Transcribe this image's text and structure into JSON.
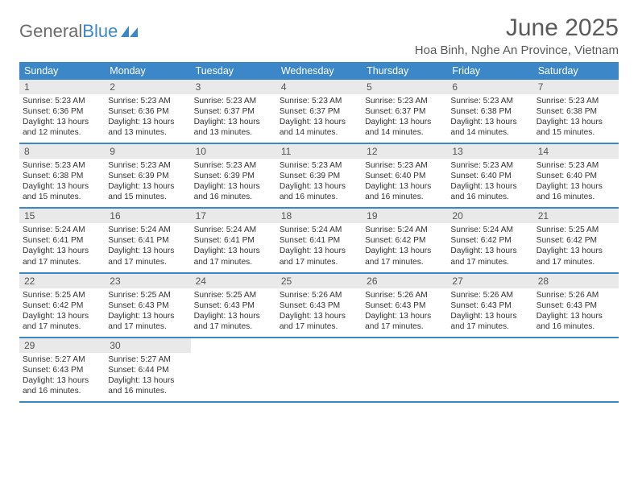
{
  "branding": {
    "logo_word1": "General",
    "logo_word2": "Blue",
    "logo_color_gray": "#6b6b6b",
    "logo_color_blue": "#3b87c8"
  },
  "header": {
    "month_title": "June 2025",
    "location": "Hoa Binh, Nghe An Province, Vietnam"
  },
  "colors": {
    "header_bar_bg": "#3b87c8",
    "header_bar_text": "#ffffff",
    "daynum_bg": "#e9e9e9",
    "text": "#333333",
    "row_border": "#3b87c8"
  },
  "typography": {
    "title_fontsize": 30,
    "location_fontsize": 15,
    "dow_fontsize": 12.5,
    "daynum_fontsize": 12,
    "body_fontsize": 10.2
  },
  "calendar": {
    "type": "table",
    "days_of_week": [
      "Sunday",
      "Monday",
      "Tuesday",
      "Wednesday",
      "Thursday",
      "Friday",
      "Saturday"
    ],
    "first_weekday_index": 0,
    "days": [
      {
        "n": 1,
        "sunrise": "5:23 AM",
        "sunset": "6:36 PM",
        "dl_h": 13,
        "dl_m": 12
      },
      {
        "n": 2,
        "sunrise": "5:23 AM",
        "sunset": "6:36 PM",
        "dl_h": 13,
        "dl_m": 13
      },
      {
        "n": 3,
        "sunrise": "5:23 AM",
        "sunset": "6:37 PM",
        "dl_h": 13,
        "dl_m": 13
      },
      {
        "n": 4,
        "sunrise": "5:23 AM",
        "sunset": "6:37 PM",
        "dl_h": 13,
        "dl_m": 14
      },
      {
        "n": 5,
        "sunrise": "5:23 AM",
        "sunset": "6:37 PM",
        "dl_h": 13,
        "dl_m": 14
      },
      {
        "n": 6,
        "sunrise": "5:23 AM",
        "sunset": "6:38 PM",
        "dl_h": 13,
        "dl_m": 14
      },
      {
        "n": 7,
        "sunrise": "5:23 AM",
        "sunset": "6:38 PM",
        "dl_h": 13,
        "dl_m": 15
      },
      {
        "n": 8,
        "sunrise": "5:23 AM",
        "sunset": "6:38 PM",
        "dl_h": 13,
        "dl_m": 15
      },
      {
        "n": 9,
        "sunrise": "5:23 AM",
        "sunset": "6:39 PM",
        "dl_h": 13,
        "dl_m": 15
      },
      {
        "n": 10,
        "sunrise": "5:23 AM",
        "sunset": "6:39 PM",
        "dl_h": 13,
        "dl_m": 16
      },
      {
        "n": 11,
        "sunrise": "5:23 AM",
        "sunset": "6:39 PM",
        "dl_h": 13,
        "dl_m": 16
      },
      {
        "n": 12,
        "sunrise": "5:23 AM",
        "sunset": "6:40 PM",
        "dl_h": 13,
        "dl_m": 16
      },
      {
        "n": 13,
        "sunrise": "5:23 AM",
        "sunset": "6:40 PM",
        "dl_h": 13,
        "dl_m": 16
      },
      {
        "n": 14,
        "sunrise": "5:23 AM",
        "sunset": "6:40 PM",
        "dl_h": 13,
        "dl_m": 16
      },
      {
        "n": 15,
        "sunrise": "5:24 AM",
        "sunset": "6:41 PM",
        "dl_h": 13,
        "dl_m": 17
      },
      {
        "n": 16,
        "sunrise": "5:24 AM",
        "sunset": "6:41 PM",
        "dl_h": 13,
        "dl_m": 17
      },
      {
        "n": 17,
        "sunrise": "5:24 AM",
        "sunset": "6:41 PM",
        "dl_h": 13,
        "dl_m": 17
      },
      {
        "n": 18,
        "sunrise": "5:24 AM",
        "sunset": "6:41 PM",
        "dl_h": 13,
        "dl_m": 17
      },
      {
        "n": 19,
        "sunrise": "5:24 AM",
        "sunset": "6:42 PM",
        "dl_h": 13,
        "dl_m": 17
      },
      {
        "n": 20,
        "sunrise": "5:24 AM",
        "sunset": "6:42 PM",
        "dl_h": 13,
        "dl_m": 17
      },
      {
        "n": 21,
        "sunrise": "5:25 AM",
        "sunset": "6:42 PM",
        "dl_h": 13,
        "dl_m": 17
      },
      {
        "n": 22,
        "sunrise": "5:25 AM",
        "sunset": "6:42 PM",
        "dl_h": 13,
        "dl_m": 17
      },
      {
        "n": 23,
        "sunrise": "5:25 AM",
        "sunset": "6:43 PM",
        "dl_h": 13,
        "dl_m": 17
      },
      {
        "n": 24,
        "sunrise": "5:25 AM",
        "sunset": "6:43 PM",
        "dl_h": 13,
        "dl_m": 17
      },
      {
        "n": 25,
        "sunrise": "5:26 AM",
        "sunset": "6:43 PM",
        "dl_h": 13,
        "dl_m": 17
      },
      {
        "n": 26,
        "sunrise": "5:26 AM",
        "sunset": "6:43 PM",
        "dl_h": 13,
        "dl_m": 17
      },
      {
        "n": 27,
        "sunrise": "5:26 AM",
        "sunset": "6:43 PM",
        "dl_h": 13,
        "dl_m": 17
      },
      {
        "n": 28,
        "sunrise": "5:26 AM",
        "sunset": "6:43 PM",
        "dl_h": 13,
        "dl_m": 16
      },
      {
        "n": 29,
        "sunrise": "5:27 AM",
        "sunset": "6:43 PM",
        "dl_h": 13,
        "dl_m": 16
      },
      {
        "n": 30,
        "sunrise": "5:27 AM",
        "sunset": "6:44 PM",
        "dl_h": 13,
        "dl_m": 16
      }
    ],
    "labels": {
      "sunrise_prefix": "Sunrise: ",
      "sunset_prefix": "Sunset: ",
      "daylight_prefix": "Daylight: ",
      "hours_word": " hours",
      "and_word": "and ",
      "minutes_word": " minutes."
    }
  }
}
